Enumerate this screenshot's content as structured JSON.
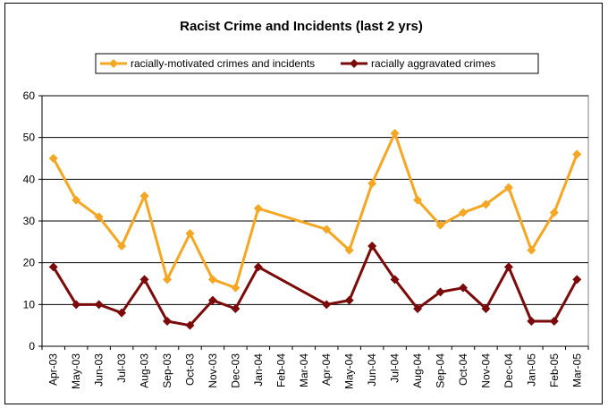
{
  "chart_data": {
    "type": "line",
    "title": "Racist Crime and Incidents (last 2 yrs)",
    "xlabel": "",
    "ylabel": "",
    "ylim": [
      0,
      60
    ],
    "yticks": [
      0,
      10,
      20,
      30,
      40,
      50,
      60
    ],
    "grid": true,
    "legend_position": "top",
    "categories": [
      "Apr-03",
      "May-03",
      "Jun-03",
      "Jul-03",
      "Aug-03",
      "Sep-03",
      "Oct-03",
      "Nov-03",
      "Dec-03",
      "Jan-04",
      "Feb-04",
      "Mar-04",
      "Apr-04",
      "May-04",
      "Jun-04",
      "Jul-04",
      "Aug-04",
      "Sep-04",
      "Oct-04",
      "Nov-04",
      "Dec-04",
      "Jan-05",
      "Feb-05",
      "Mar-05"
    ],
    "series": [
      {
        "name": "racially-motivated crimes and incidents",
        "color": "#F5A623",
        "values": [
          45,
          35,
          31,
          24,
          36,
          16,
          27,
          16,
          14,
          33,
          null,
          null,
          28,
          23,
          39,
          51,
          35,
          29,
          32,
          34,
          38,
          23,
          32,
          46
        ]
      },
      {
        "name": "racially aggravated crimes",
        "color": "#7B0A0A",
        "values": [
          19,
          10,
          10,
          8,
          16,
          6,
          5,
          11,
          9,
          19,
          null,
          null,
          10,
          11,
          24,
          16,
          9,
          13,
          14,
          9,
          19,
          6,
          6,
          16
        ]
      }
    ]
  }
}
